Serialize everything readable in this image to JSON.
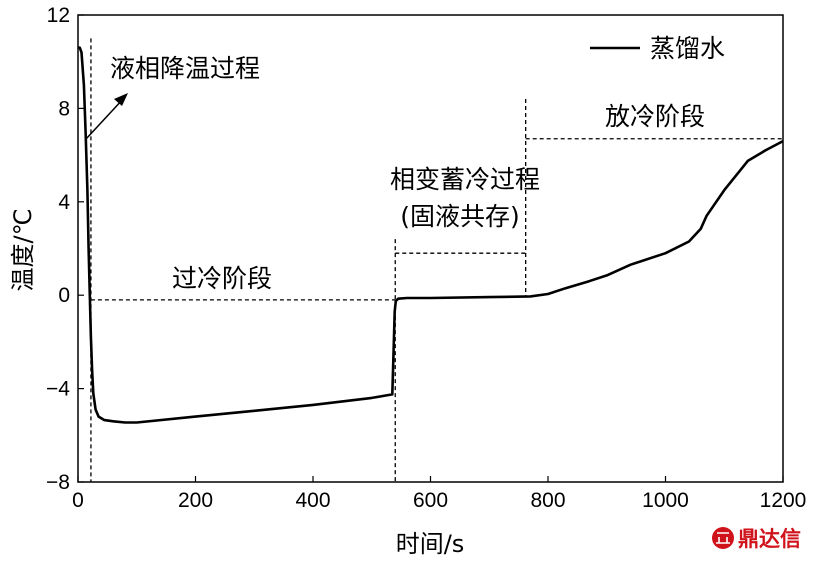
{
  "chart_data": {
    "type": "line",
    "xlabel": "时间/s",
    "ylabel": "温度/℃",
    "xlim": [
      0,
      1200
    ],
    "ylim": [
      -8,
      12
    ],
    "xticks": [
      0,
      200,
      400,
      600,
      800,
      1000,
      1200
    ],
    "yticks": [
      12,
      8,
      4,
      0,
      -4,
      -8
    ],
    "ytick_labels": [
      "12",
      "8",
      "4",
      "0",
      "−4",
      "−8"
    ],
    "grid": false,
    "legend": {
      "position": "top-right",
      "entries": [
        "蒸馏水"
      ]
    },
    "series": [
      {
        "name": "蒸馏水",
        "color": "#000000",
        "x": [
          0,
          3,
          6,
          10,
          13,
          16,
          18,
          20,
          22,
          24,
          26,
          30,
          35,
          45,
          60,
          80,
          100,
          200,
          300,
          400,
          500,
          535,
          537,
          539,
          541,
          545,
          560,
          600,
          700,
          770,
          800,
          830,
          870,
          900,
          940,
          1000,
          1040,
          1060,
          1070,
          1100,
          1140,
          1170,
          1200
        ],
        "y": [
          10.6,
          10.6,
          10.4,
          9.0,
          7.0,
          4.5,
          2.0,
          0.0,
          -1.8,
          -3.2,
          -4.2,
          -4.9,
          -5.2,
          -5.35,
          -5.4,
          -5.45,
          -5.45,
          -5.2,
          -4.95,
          -4.7,
          -4.4,
          -4.25,
          -2.5,
          -0.7,
          -0.25,
          -0.15,
          -0.12,
          -0.12,
          -0.08,
          -0.05,
          0.05,
          0.3,
          0.6,
          0.85,
          1.3,
          1.8,
          2.3,
          2.85,
          3.4,
          4.5,
          5.75,
          6.2,
          6.6
        ]
      }
    ],
    "annotations": [
      {
        "text": "液相降温过程"
      },
      {
        "text": "过冷阶段"
      },
      {
        "text": "相变蓄冷过程"
      },
      {
        "text": "(固液共存)"
      },
      {
        "text": "放冷阶段"
      }
    ],
    "watermark": "鼎达信"
  }
}
